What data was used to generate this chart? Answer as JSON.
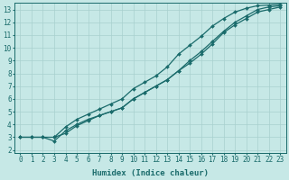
{
  "title": "",
  "xlabel": "Humidex (Indice chaleur)",
  "ylabel": "",
  "bg_color": "#c6e8e6",
  "line_color": "#1a6b6b",
  "grid_color": "#a8d0ce",
  "xlim": [
    -0.5,
    23.5
  ],
  "ylim": [
    1.8,
    13.5
  ],
  "xticks": [
    0,
    1,
    2,
    3,
    4,
    5,
    6,
    7,
    8,
    9,
    10,
    11,
    12,
    13,
    14,
    15,
    16,
    17,
    18,
    19,
    20,
    21,
    22,
    23
  ],
  "yticks": [
    2,
    3,
    4,
    5,
    6,
    7,
    8,
    9,
    10,
    11,
    12,
    13
  ],
  "line1_x": [
    0,
    1,
    2,
    3,
    4,
    5,
    6,
    7,
    8,
    9,
    10,
    11,
    12,
    13,
    14,
    15,
    16,
    17,
    18,
    19,
    20,
    21,
    22,
    23
  ],
  "line1_y": [
    3.0,
    3.0,
    3.0,
    3.0,
    3.3,
    3.9,
    4.3,
    4.7,
    5.0,
    5.3,
    6.0,
    6.5,
    7.0,
    7.5,
    8.2,
    9.0,
    9.7,
    10.5,
    11.3,
    12.0,
    12.5,
    13.0,
    13.2,
    13.3
  ],
  "line2_x": [
    0,
    1,
    2,
    3,
    4,
    5,
    6,
    7,
    8,
    9,
    10,
    11,
    12,
    13,
    14,
    15,
    16,
    17,
    18,
    19,
    20,
    21,
    22,
    23
  ],
  "line2_y": [
    3.0,
    3.0,
    3.0,
    2.7,
    3.5,
    4.0,
    4.4,
    4.7,
    5.0,
    5.3,
    6.0,
    6.5,
    7.0,
    7.5,
    8.2,
    8.8,
    9.5,
    10.3,
    11.2,
    11.8,
    12.3,
    12.8,
    13.0,
    13.2
  ],
  "line3_x": [
    3,
    4,
    5,
    6,
    7,
    8,
    9,
    10,
    11,
    12,
    13,
    14,
    15,
    16,
    17,
    18,
    19,
    20,
    21,
    22,
    23
  ],
  "line3_y": [
    3.0,
    3.8,
    4.4,
    4.8,
    5.2,
    5.6,
    6.0,
    6.8,
    7.3,
    7.8,
    8.5,
    9.5,
    10.2,
    10.9,
    11.7,
    12.3,
    12.8,
    13.1,
    13.3,
    13.35,
    13.4
  ],
  "marker": "D",
  "markersize": 2.0,
  "linewidth": 0.9,
  "xlabel_fontsize": 6.5,
  "tick_fontsize": 5.5
}
